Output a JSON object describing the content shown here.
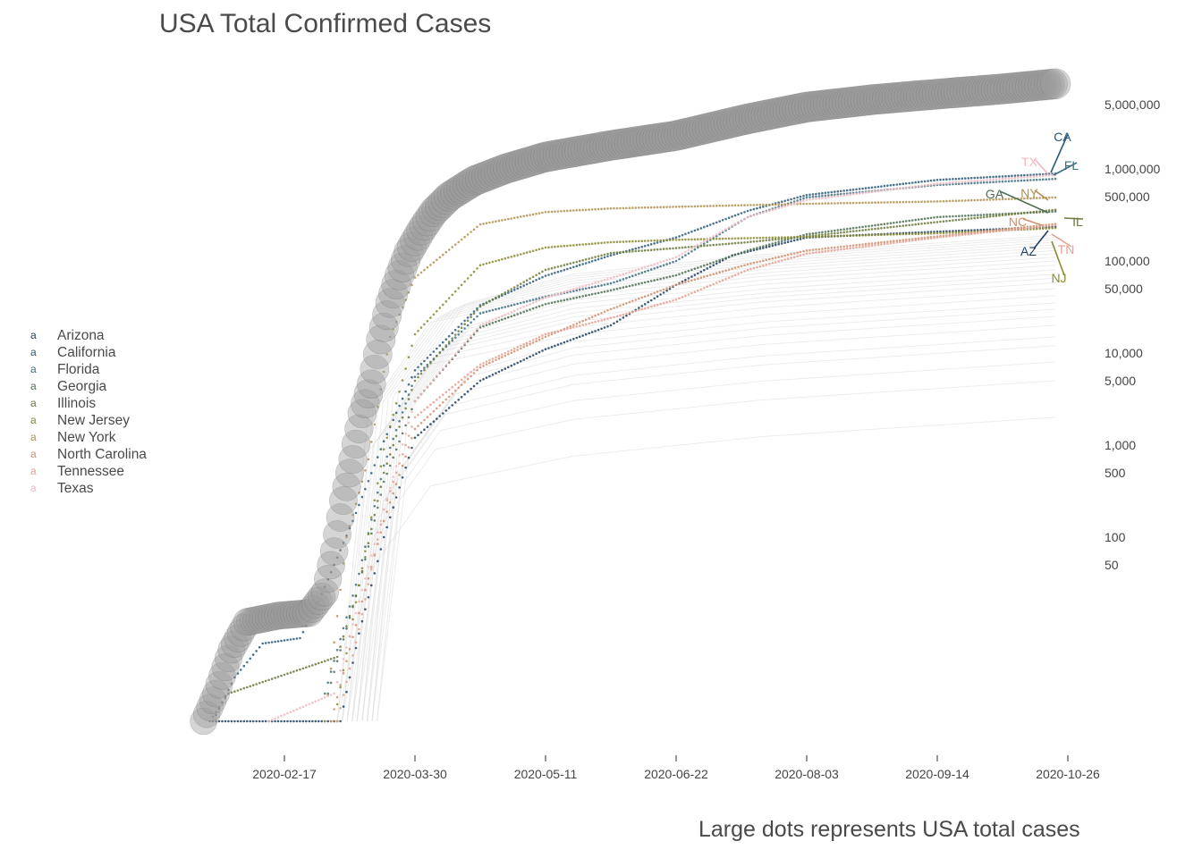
{
  "chart_data": {
    "type": "scatter",
    "title": "USA Total Confirmed Cases",
    "caption": "Large dots represents USA total cases",
    "xlabel": "",
    "ylabel": "",
    "x_ticks": [
      "2020-02-17",
      "2020-03-30",
      "2020-05-11",
      "2020-06-22",
      "2020-08-03",
      "2020-09-14",
      "2020-10-26"
    ],
    "y_ticks": [
      50,
      100,
      500,
      1000,
      5000,
      10000,
      50000,
      100000,
      500000,
      1000000,
      5000000
    ],
    "y_tick_labels": [
      "50",
      "100",
      "500",
      "1,000",
      "5,000",
      "10,000",
      "50,000",
      "100,000",
      "500,000",
      "1,000,000",
      "5,000,000"
    ],
    "y_scale": "log10",
    "y_axis_position": "right",
    "xlim": [
      "2020-01-21",
      "2020-10-26"
    ],
    "ylim": [
      1,
      10000000
    ],
    "grid": false,
    "legend_position": "left",
    "usa_total": {
      "label": "USA total cases",
      "color": "#555555",
      "points": [
        [
          "2020-01-22",
          1
        ],
        [
          "2020-01-26",
          2
        ],
        [
          "2020-01-31",
          6
        ],
        [
          "2020-02-05",
          12
        ],
        [
          "2020-02-15",
          14
        ],
        [
          "2020-02-25",
          15
        ],
        [
          "2020-03-01",
          25
        ],
        [
          "2020-03-04",
          70
        ],
        [
          "2020-03-07",
          250
        ],
        [
          "2020-03-10",
          700
        ],
        [
          "2020-03-13",
          2200
        ],
        [
          "2020-03-16",
          4600
        ],
        [
          "2020-03-19",
          14000
        ],
        [
          "2020-03-22",
          35000
        ],
        [
          "2020-03-25",
          70000
        ],
        [
          "2020-03-28",
          125000
        ],
        [
          "2020-04-01",
          215000
        ],
        [
          "2020-04-05",
          340000
        ],
        [
          "2020-04-10",
          500000
        ],
        [
          "2020-04-18",
          740000
        ],
        [
          "2020-04-28",
          1000000
        ],
        [
          "2020-05-11",
          1350000
        ],
        [
          "2020-06-01",
          1800000
        ],
        [
          "2020-06-22",
          2300000
        ],
        [
          "2020-07-15",
          3500000
        ],
        [
          "2020-08-03",
          4700000
        ],
        [
          "2020-08-25",
          5700000
        ],
        [
          "2020-09-14",
          6500000
        ],
        [
          "2020-10-05",
          7400000
        ],
        [
          "2020-10-22",
          8400000
        ]
      ]
    },
    "series": [
      {
        "name": "Arizona",
        "abbr": "AZ",
        "color": "#1f3f5f",
        "points": [
          [
            "2020-01-26",
            1
          ],
          [
            "2020-03-06",
            1
          ],
          [
            "2020-03-12",
            9
          ],
          [
            "2020-03-20",
            100
          ],
          [
            "2020-03-30",
            1200
          ],
          [
            "2020-04-20",
            5000
          ],
          [
            "2020-05-11",
            11000
          ],
          [
            "2020-06-01",
            20000
          ],
          [
            "2020-06-22",
            55000
          ],
          [
            "2020-07-10",
            115000
          ],
          [
            "2020-08-03",
            180000
          ],
          [
            "2020-09-14",
            208000
          ],
          [
            "2020-10-22",
            235000
          ]
        ]
      },
      {
        "name": "California",
        "abbr": "CA",
        "color": "#2c5a7a",
        "points": [
          [
            "2020-01-25",
            1
          ],
          [
            "2020-02-01",
            3
          ],
          [
            "2020-02-10",
            7
          ],
          [
            "2020-02-22",
            8
          ],
          [
            "2020-02-28",
            20
          ],
          [
            "2020-03-10",
            150
          ],
          [
            "2020-03-20",
            1100
          ],
          [
            "2020-03-30",
            6500
          ],
          [
            "2020-04-20",
            33000
          ],
          [
            "2020-05-11",
            69000
          ],
          [
            "2020-06-01",
            115000
          ],
          [
            "2020-06-22",
            180000
          ],
          [
            "2020-07-15",
            350000
          ],
          [
            "2020-08-03",
            520000
          ],
          [
            "2020-09-14",
            760000
          ],
          [
            "2020-10-22",
            890000
          ]
        ]
      },
      {
        "name": "Florida",
        "abbr": "FL",
        "color": "#3e7080",
        "points": [
          [
            "2020-03-01",
            2
          ],
          [
            "2020-03-12",
            40
          ],
          [
            "2020-03-20",
            600
          ],
          [
            "2020-03-30",
            5500
          ],
          [
            "2020-04-20",
            27000
          ],
          [
            "2020-05-11",
            41000
          ],
          [
            "2020-06-01",
            57000
          ],
          [
            "2020-06-22",
            100000
          ],
          [
            "2020-07-15",
            300000
          ],
          [
            "2020-08-03",
            490000
          ],
          [
            "2020-09-14",
            670000
          ],
          [
            "2020-10-22",
            780000
          ]
        ]
      },
      {
        "name": "Georgia",
        "abbr": "GA",
        "color": "#4f6e52",
        "points": [
          [
            "2020-03-02",
            2
          ],
          [
            "2020-03-12",
            30
          ],
          [
            "2020-03-20",
            400
          ],
          [
            "2020-03-30",
            3000
          ],
          [
            "2020-04-20",
            19000
          ],
          [
            "2020-05-11",
            34000
          ],
          [
            "2020-06-01",
            48000
          ],
          [
            "2020-06-22",
            70000
          ],
          [
            "2020-07-15",
            130000
          ],
          [
            "2020-08-03",
            195000
          ],
          [
            "2020-09-14",
            300000
          ],
          [
            "2020-10-22",
            345000
          ]
        ]
      },
      {
        "name": "Illinois",
        "abbr": "IL",
        "color": "#6a7a3a",
        "points": [
          [
            "2020-01-24",
            1
          ],
          [
            "2020-01-30",
            2
          ],
          [
            "2020-03-05",
            5
          ],
          [
            "2020-03-12",
            30
          ],
          [
            "2020-03-20",
            500
          ],
          [
            "2020-03-30",
            5000
          ],
          [
            "2020-04-20",
            32000
          ],
          [
            "2020-05-11",
            80000
          ],
          [
            "2020-06-01",
            122000
          ],
          [
            "2020-06-22",
            138000
          ],
          [
            "2020-07-15",
            160000
          ],
          [
            "2020-08-03",
            185000
          ],
          [
            "2020-09-14",
            265000
          ],
          [
            "2020-10-22",
            360000
          ]
        ]
      },
      {
        "name": "New Jersey",
        "abbr": "NJ",
        "color": "#8a8a30",
        "points": [
          [
            "2020-03-04",
            1
          ],
          [
            "2020-03-12",
            30
          ],
          [
            "2020-03-20",
            900
          ],
          [
            "2020-03-30",
            16000
          ],
          [
            "2020-04-20",
            90000
          ],
          [
            "2020-05-11",
            140000
          ],
          [
            "2020-06-01",
            160000
          ],
          [
            "2020-06-22",
            170000
          ],
          [
            "2020-08-03",
            183000
          ],
          [
            "2020-09-14",
            200000
          ],
          [
            "2020-10-22",
            228000
          ]
        ]
      },
      {
        "name": "New York",
        "abbr": "NY",
        "color": "#b09050",
        "points": [
          [
            "2020-03-01",
            1
          ],
          [
            "2020-03-08",
            100
          ],
          [
            "2020-03-15",
            700
          ],
          [
            "2020-03-22",
            15000
          ],
          [
            "2020-03-30",
            66000
          ],
          [
            "2020-04-20",
            250000
          ],
          [
            "2020-05-11",
            340000
          ],
          [
            "2020-06-01",
            372000
          ],
          [
            "2020-06-22",
            388000
          ],
          [
            "2020-08-03",
            418000
          ],
          [
            "2020-09-14",
            443000
          ],
          [
            "2020-10-22",
            490000
          ]
        ]
      },
      {
        "name": "North Carolina",
        "abbr": "NC",
        "color": "#d09070",
        "points": [
          [
            "2020-03-03",
            1
          ],
          [
            "2020-03-12",
            15
          ],
          [
            "2020-03-20",
            150
          ],
          [
            "2020-03-30",
            1500
          ],
          [
            "2020-04-20",
            7000
          ],
          [
            "2020-05-11",
            15000
          ],
          [
            "2020-06-01",
            30000
          ],
          [
            "2020-06-22",
            55000
          ],
          [
            "2020-07-15",
            92000
          ],
          [
            "2020-08-03",
            130000
          ],
          [
            "2020-09-14",
            185000
          ],
          [
            "2020-10-22",
            252000
          ]
        ]
      },
      {
        "name": "Tennessee",
        "abbr": "TN",
        "color": "#e4a090",
        "points": [
          [
            "2020-03-05",
            1
          ],
          [
            "2020-03-12",
            10
          ],
          [
            "2020-03-20",
            200
          ],
          [
            "2020-03-30",
            2000
          ],
          [
            "2020-04-20",
            7500
          ],
          [
            "2020-05-11",
            16000
          ],
          [
            "2020-06-01",
            24000
          ],
          [
            "2020-06-22",
            38000
          ],
          [
            "2020-07-15",
            80000
          ],
          [
            "2020-08-03",
            120000
          ],
          [
            "2020-09-14",
            180000
          ],
          [
            "2020-10-22",
            245000
          ]
        ]
      },
      {
        "name": "Texas",
        "abbr": "TX",
        "color": "#f0b8c0",
        "points": [
          [
            "2020-02-12",
            1
          ],
          [
            "2020-03-04",
            2
          ],
          [
            "2020-03-12",
            20
          ],
          [
            "2020-03-20",
            200
          ],
          [
            "2020-03-30",
            3000
          ],
          [
            "2020-04-20",
            20000
          ],
          [
            "2020-05-11",
            40000
          ],
          [
            "2020-06-01",
            65000
          ],
          [
            "2020-06-22",
            110000
          ],
          [
            "2020-07-15",
            300000
          ],
          [
            "2020-08-03",
            460000
          ],
          [
            "2020-09-14",
            690000
          ],
          [
            "2020-10-22",
            860000
          ]
        ]
      }
    ],
    "background_series_color": "#dddddd",
    "background_series_endpoints": [
      2000,
      5000,
      8000,
      12000,
      15000,
      20000,
      25000,
      30000,
      35000,
      42000,
      50000,
      58000,
      65000,
      72000,
      80000,
      90000,
      100000,
      110000,
      120000,
      130000,
      140000,
      150000,
      160000,
      170000,
      180000,
      190000
    ]
  }
}
